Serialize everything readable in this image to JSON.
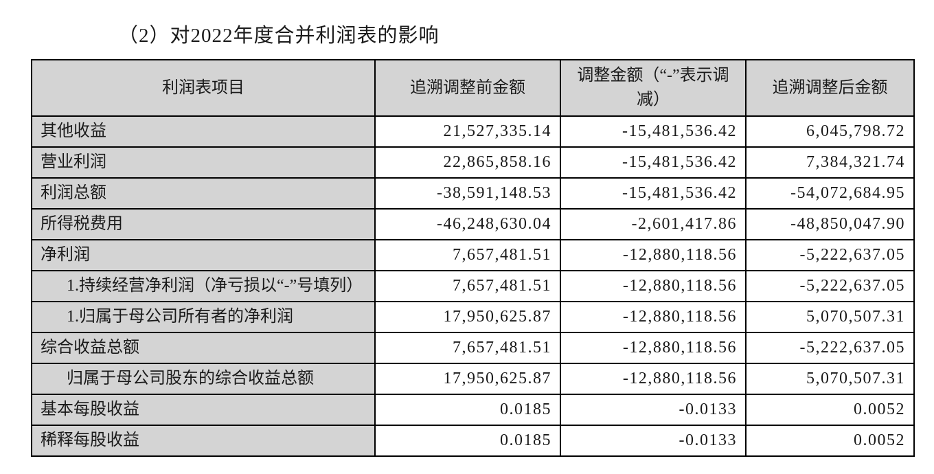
{
  "title": "（2）对2022年度合并利润表的影响",
  "table": {
    "headers": [
      "利润表项目",
      "追溯调整前金额",
      "调整金额（“-”表示调减）",
      "追溯调整后金额"
    ],
    "rows": [
      {
        "item": "其他收益",
        "indent": false,
        "before": "21,527,335.14",
        "adjust": "-15,481,536.42",
        "after": "6,045,798.72"
      },
      {
        "item": "营业利润",
        "indent": false,
        "before": "22,865,858.16",
        "adjust": "-15,481,536.42",
        "after": "7,384,321.74"
      },
      {
        "item": "利润总额",
        "indent": false,
        "before": "-38,591,148.53",
        "adjust": "-15,481,536.42",
        "after": "-54,072,684.95"
      },
      {
        "item": "所得税费用",
        "indent": false,
        "before": "-46,248,630.04",
        "adjust": "-2,601,417.86",
        "after": "-48,850,047.90"
      },
      {
        "item": "净利润",
        "indent": false,
        "before": "7,657,481.51",
        "adjust": "-12,880,118.56",
        "after": "-5,222,637.05"
      },
      {
        "item": "1.持续经营净利润（净亏损以“-”号填列）",
        "indent": true,
        "before": "7,657,481.51",
        "adjust": "-12,880,118.56",
        "after": "-5,222,637.05"
      },
      {
        "item": "1.归属于母公司所有者的净利润",
        "indent": true,
        "before": "17,950,625.87",
        "adjust": "-12,880,118.56",
        "after": "5,070,507.31"
      },
      {
        "item": "综合收益总额",
        "indent": false,
        "before": "7,657,481.51",
        "adjust": "-12,880,118.56",
        "after": "-5,222,637.05"
      },
      {
        "item": "归属于母公司股东的综合收益总额",
        "indent": true,
        "before": "17,950,625.87",
        "adjust": "-12,880,118.56",
        "after": "5,070,507.31"
      },
      {
        "item": "基本每股收益",
        "indent": false,
        "before": "0.0185",
        "adjust": "-0.0133",
        "after": "0.0052"
      },
      {
        "item": "稀释每股收益",
        "indent": false,
        "before": "0.0185",
        "adjust": "-0.0133",
        "after": "0.0052"
      }
    ]
  }
}
